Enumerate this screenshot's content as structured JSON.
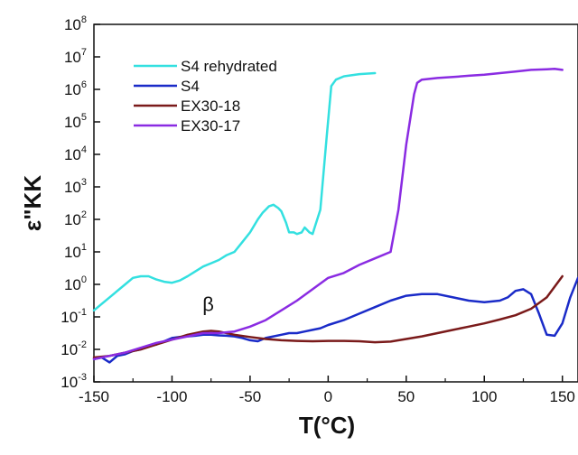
{
  "chart_data": {
    "type": "line",
    "title": "",
    "xlabel": "T(°C)",
    "ylabel": "ε\"KK",
    "xlim": [
      -150,
      160
    ],
    "ylim_exp": [
      -3,
      8
    ],
    "y_scale": "log",
    "x_ticks": [
      -150,
      -100,
      -50,
      0,
      50,
      100,
      150
    ],
    "y_tick_exponents": [
      -3,
      -2,
      -1,
      0,
      1,
      2,
      3,
      4,
      5,
      6,
      7,
      8
    ],
    "y_tick_base": "10",
    "grid": false,
    "legend_position": "top-left",
    "annotations": [
      {
        "text": "β",
        "x": -77,
        "y_exp": -0.82
      }
    ],
    "series": [
      {
        "name": "S4 rehydrated",
        "color": "#33e0e0",
        "x": [
          -150,
          -140,
          -130,
          -125,
          -120,
          -115,
          -110,
          -105,
          -100,
          -95,
          -90,
          -85,
          -80,
          -75,
          -70,
          -65,
          -60,
          -55,
          -50,
          -45,
          -42,
          -40,
          -38,
          -35,
          -32,
          -30,
          -27,
          -25,
          -22,
          -20,
          -17,
          -15,
          -12,
          -10,
          -5,
          -1,
          2,
          5,
          10,
          20,
          30
        ],
        "y_exp": [
          -0.8,
          -0.4,
          0.0,
          0.2,
          0.25,
          0.25,
          0.15,
          0.08,
          0.05,
          0.12,
          0.25,
          0.4,
          0.55,
          0.65,
          0.75,
          0.9,
          1.0,
          1.3,
          1.6,
          2.0,
          2.2,
          2.3,
          2.4,
          2.45,
          2.35,
          2.25,
          1.9,
          1.6,
          1.6,
          1.55,
          1.6,
          1.75,
          1.6,
          1.55,
          2.3,
          4.5,
          6.1,
          6.3,
          6.4,
          6.47,
          6.5
        ]
      },
      {
        "name": "S4",
        "color": "#1a2bc8",
        "x": [
          -150,
          -145,
          -140,
          -135,
          -130,
          -125,
          -120,
          -115,
          -110,
          -105,
          -100,
          -95,
          -90,
          -85,
          -80,
          -75,
          -70,
          -65,
          -60,
          -55,
          -50,
          -45,
          -40,
          -35,
          -30,
          -25,
          -20,
          -15,
          -10,
          -5,
          0,
          10,
          20,
          30,
          40,
          50,
          60,
          70,
          80,
          90,
          100,
          110,
          115,
          120,
          125,
          130,
          135,
          140,
          145,
          150,
          155,
          160
        ],
        "y_exp": [
          -2.3,
          -2.25,
          -2.4,
          -2.2,
          -2.15,
          -2.05,
          -2.0,
          -1.9,
          -1.85,
          -1.75,
          -1.65,
          -1.62,
          -1.6,
          -1.58,
          -1.55,
          -1.55,
          -1.57,
          -1.58,
          -1.6,
          -1.65,
          -1.72,
          -1.75,
          -1.65,
          -1.6,
          -1.55,
          -1.5,
          -1.5,
          -1.45,
          -1.4,
          -1.35,
          -1.25,
          -1.1,
          -0.9,
          -0.7,
          -0.5,
          -0.35,
          -0.3,
          -0.3,
          -0.4,
          -0.5,
          -0.55,
          -0.5,
          -0.4,
          -0.2,
          -0.15,
          -0.3,
          -0.9,
          -1.55,
          -1.58,
          -1.2,
          -0.4,
          0.2
        ]
      },
      {
        "name": "EX30-18",
        "color": "#7a1a1a",
        "x": [
          -150,
          -140,
          -130,
          -120,
          -110,
          -100,
          -90,
          -80,
          -75,
          -70,
          -60,
          -50,
          -40,
          -30,
          -20,
          -10,
          0,
          10,
          20,
          30,
          40,
          50,
          60,
          70,
          80,
          90,
          100,
          110,
          120,
          130,
          140,
          150
        ],
        "y_exp": [
          -2.25,
          -2.2,
          -2.1,
          -2.0,
          -1.85,
          -1.7,
          -1.55,
          -1.45,
          -1.43,
          -1.45,
          -1.55,
          -1.62,
          -1.68,
          -1.72,
          -1.74,
          -1.75,
          -1.74,
          -1.74,
          -1.75,
          -1.78,
          -1.76,
          -1.68,
          -1.6,
          -1.5,
          -1.4,
          -1.3,
          -1.2,
          -1.08,
          -0.95,
          -0.75,
          -0.4,
          0.25
        ]
      },
      {
        "name": "EX30-17",
        "color": "#8a2be2",
        "x": [
          -150,
          -140,
          -130,
          -120,
          -110,
          -100,
          -90,
          -80,
          -70,
          -60,
          -50,
          -40,
          -30,
          -20,
          -10,
          0,
          10,
          20,
          30,
          40,
          45,
          50,
          55,
          57,
          60,
          70,
          80,
          90,
          100,
          110,
          120,
          130,
          140,
          145,
          150
        ],
        "y_exp": [
          -2.3,
          -2.2,
          -2.1,
          -1.95,
          -1.8,
          -1.7,
          -1.6,
          -1.5,
          -1.5,
          -1.45,
          -1.3,
          -1.1,
          -0.8,
          -0.5,
          -0.15,
          0.2,
          0.35,
          0.6,
          0.8,
          1.0,
          2.3,
          4.3,
          5.85,
          6.2,
          6.3,
          6.35,
          6.38,
          6.42,
          6.45,
          6.5,
          6.55,
          6.6,
          6.62,
          6.63,
          6.6
        ]
      }
    ]
  }
}
